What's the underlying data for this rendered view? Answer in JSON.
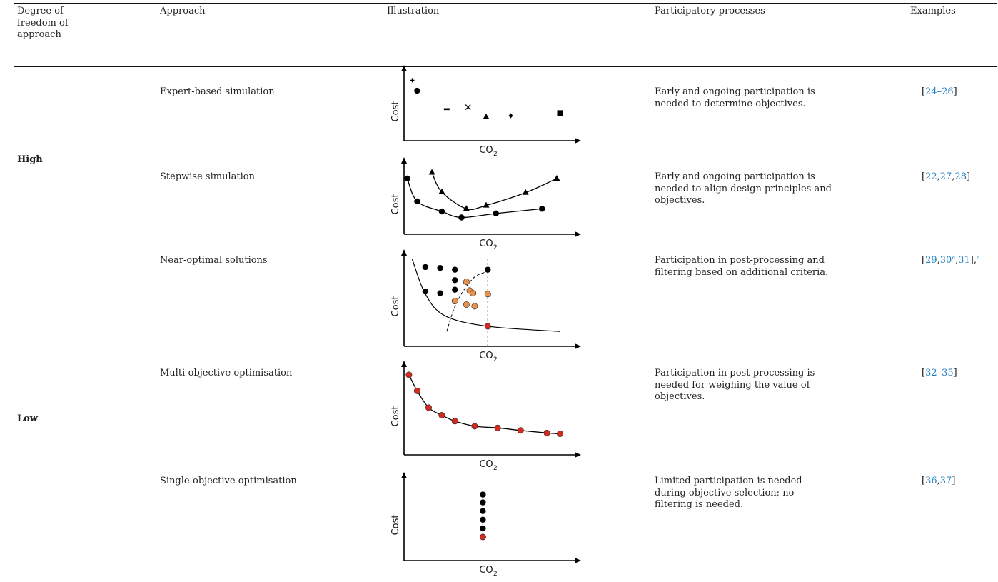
{
  "headers": {
    "degree": "Degree of freedom of approach",
    "approach": "Approach",
    "illustration": "Illustration",
    "participatory": "Participatory processes",
    "examples": "Examples"
  },
  "groups": {
    "high": "High",
    "low": "Low"
  },
  "rows": [
    {
      "approach": "Expert-based simulation",
      "participation": "Early and ongoing participation is needed to determine objectives.",
      "refs": [
        "24–26"
      ]
    },
    {
      "approach": "Stepwise simulation",
      "participation": "Early and ongoing participation is needed to align design principles and objectives.",
      "refs": [
        "22",
        "27",
        "28"
      ]
    },
    {
      "approach": "Near-optimal solutions",
      "participation": "Participation in post-processing and filtering based on additional criteria.",
      "refs": [
        "29",
        "30",
        "31"
      ],
      "ref_mark": "a"
    },
    {
      "approach": "Multi-objective optimisation",
      "participation": "Participation in post-processing is needed for weighing the value of objectives.",
      "refs": [
        "32–35"
      ]
    },
    {
      "approach": "Single-objective optimisation",
      "participation": "Limited participation is needed during objective selection; no filtering is needed.",
      "refs": [
        "36",
        "37"
      ]
    }
  ],
  "axes": {
    "y": "Cost",
    "x": "CO",
    "x_sub": "2"
  },
  "colors": {
    "link": "#1e7fc0",
    "highlight_red": "#d42a1f",
    "orange": "#e8914c",
    "black": "#000000"
  },
  "chart_data": [
    {
      "type": "scatter",
      "title": "Expert-based simulation",
      "xlabel": "CO2",
      "ylabel": "Cost",
      "series": [
        {
          "marker": "plus",
          "points": [
            [
              0.5,
              9.2
            ]
          ]
        },
        {
          "marker": "circle",
          "points": [
            [
              0.8,
              7.6
            ]
          ]
        },
        {
          "marker": "minus",
          "points": [
            [
              2.6,
              4.8
            ]
          ]
        },
        {
          "marker": "x",
          "points": [
            [
              3.9,
              5.1
            ]
          ]
        },
        {
          "marker": "triangle",
          "points": [
            [
              5.0,
              3.6
            ]
          ]
        },
        {
          "marker": "diamond",
          "points": [
            [
              6.5,
              3.8
            ]
          ]
        },
        {
          "marker": "square",
          "points": [
            [
              9.5,
              4.2
            ]
          ]
        }
      ]
    },
    {
      "type": "line",
      "title": "Stepwise simulation",
      "xlabel": "CO2",
      "ylabel": "Cost",
      "series": [
        {
          "marker": "triangle",
          "points": [
            [
              1.7,
              9.2
            ],
            [
              2.3,
              6.3
            ],
            [
              3.8,
              3.8
            ],
            [
              5.0,
              4.3
            ],
            [
              7.4,
              6.2
            ],
            [
              9.3,
              8.3
            ]
          ]
        },
        {
          "marker": "circle",
          "points": [
            [
              0.2,
              8.3
            ],
            [
              0.8,
              4.9
            ],
            [
              2.3,
              3.4
            ],
            [
              3.5,
              2.5
            ],
            [
              5.6,
              3.1
            ],
            [
              8.4,
              3.8
            ]
          ]
        }
      ]
    },
    {
      "type": "scatter",
      "title": "Near-optimal solutions",
      "xlabel": "CO2",
      "ylabel": "Cost",
      "series": [
        {
          "name": "",
          "color": "black",
          "points": [
            [
              1.3,
              9.1
            ],
            [
              2.2,
              9.0
            ],
            [
              3.1,
              8.8
            ],
            [
              3.1,
              7.6
            ],
            [
              3.1,
              6.5
            ],
            [
              1.3,
              6.3
            ],
            [
              2.2,
              6.1
            ],
            [
              5.1,
              8.8
            ]
          ]
        },
        {
          "name": "",
          "color": "orange",
          "points": [
            [
              3.8,
              7.4
            ],
            [
              4.0,
              6.4
            ],
            [
              4.2,
              6.1
            ],
            [
              5.1,
              6.0
            ],
            [
              3.1,
              5.2
            ],
            [
              3.8,
              4.8
            ],
            [
              4.3,
              4.6
            ]
          ]
        },
        {
          "name": "",
          "color": "red",
          "points": [
            [
              5.1,
              2.3
            ]
          ]
        }
      ],
      "frontier": [
        [
          0.5,
          10.0
        ],
        [
          1.3,
          6.0
        ],
        [
          2.5,
          3.5
        ],
        [
          5.1,
          2.3
        ],
        [
          9.5,
          1.7
        ]
      ],
      "threshold_x": 5.1
    },
    {
      "type": "line",
      "title": "Multi-objective optimisation",
      "xlabel": "CO2",
      "ylabel": "Cost",
      "series": [
        {
          "color": "red",
          "points": [
            [
              0.3,
              9.5
            ],
            [
              0.8,
              7.6
            ],
            [
              1.5,
              5.6
            ],
            [
              2.3,
              4.7
            ],
            [
              3.1,
              4.0
            ],
            [
              4.3,
              3.4
            ],
            [
              5.7,
              3.2
            ],
            [
              7.1,
              2.9
            ],
            [
              8.7,
              2.6
            ],
            [
              9.5,
              2.5
            ]
          ]
        }
      ]
    },
    {
      "type": "line",
      "title": "Single-objective optimisation",
      "xlabel": "CO2",
      "ylabel": "Cost",
      "series": [
        {
          "color": "black",
          "points": [
            [
              4.8,
              8.4
            ],
            [
              4.8,
              7.4
            ],
            [
              4.8,
              6.3
            ],
            [
              4.8,
              5.2
            ],
            [
              4.8,
              4.1
            ]
          ]
        },
        {
          "color": "red",
          "points": [
            [
              4.8,
              3.0
            ]
          ]
        }
      ]
    }
  ]
}
